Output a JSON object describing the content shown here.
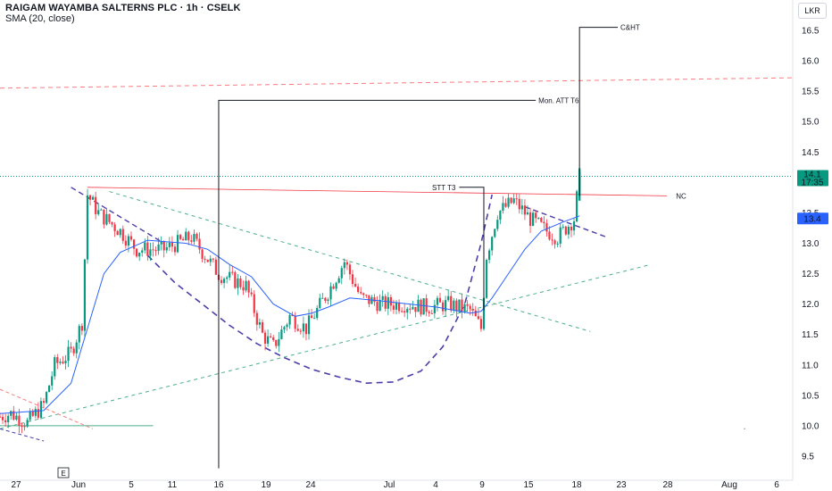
{
  "header": {
    "title": "RAIGAM WAYAMBA SALTERNS PLC · 1h · CSELK",
    "indicator": "SMA (20, close)"
  },
  "currency": "LKR",
  "colors": {
    "up": "#089981",
    "down": "#f23645",
    "sma": "#2962ff",
    "curve": "#4c3ea8",
    "trend_green": "#4caf8a",
    "trend_red": "#f77c80"
  },
  "price_badges": [
    {
      "label": "14.1",
      "sublabel": "17:35",
      "value": 14.1,
      "color": "#089981"
    },
    {
      "label": "13.4",
      "value": 13.4,
      "color": "#2962ff"
    }
  ],
  "chart_data": {
    "type": "candlestick",
    "y_axis": {
      "min": 9.3,
      "max": 16.7,
      "ticks": [
        9.5,
        10.0,
        10.5,
        11.0,
        11.5,
        12.0,
        12.5,
        13.0,
        13.5,
        14.0,
        14.5,
        15.0,
        15.5,
        16.0,
        16.5
      ]
    },
    "x_ticks": [
      "27",
      "Jun",
      "5",
      "11",
      "16",
      "19",
      "24",
      "Jul",
      "4",
      "9",
      "15",
      "18",
      "23",
      "28",
      "Aug",
      "6"
    ],
    "x_range": [
      0,
      145
    ],
    "series_close_anchor": [
      [
        0,
        10.15
      ],
      [
        2,
        10.2
      ],
      [
        5,
        10.05
      ],
      [
        8,
        10.35
      ],
      [
        10,
        11.0
      ],
      [
        13,
        11.2
      ],
      [
        15,
        11.7
      ],
      [
        16,
        13.8
      ],
      [
        18,
        13.5
      ],
      [
        22,
        13.2
      ],
      [
        25,
        12.9
      ],
      [
        30,
        12.9
      ],
      [
        35,
        13.1
      ],
      [
        40,
        12.5
      ],
      [
        45,
        12.3
      ],
      [
        48,
        11.5
      ],
      [
        50,
        11.3
      ],
      [
        53,
        11.8
      ],
      [
        56,
        11.6
      ],
      [
        60,
        12.2
      ],
      [
        63,
        12.7
      ],
      [
        66,
        12.1
      ],
      [
        70,
        12.0
      ],
      [
        74,
        12.0
      ],
      [
        78,
        11.95
      ],
      [
        82,
        12.0
      ],
      [
        86,
        11.9
      ],
      [
        88,
        11.6
      ],
      [
        89,
        12.8
      ],
      [
        91,
        13.5
      ],
      [
        94,
        13.7
      ],
      [
        97,
        13.4
      ],
      [
        100,
        13.2
      ],
      [
        102,
        13.1
      ],
      [
        105,
        13.4
      ],
      [
        106,
        14.1
      ]
    ],
    "sma": [
      [
        0,
        10.2
      ],
      [
        8,
        10.25
      ],
      [
        13,
        10.7
      ],
      [
        16,
        11.6
      ],
      [
        19,
        12.5
      ],
      [
        22,
        12.85
      ],
      [
        27,
        13.05
      ],
      [
        34,
        13.0
      ],
      [
        38,
        12.9
      ],
      [
        42,
        12.65
      ],
      [
        46,
        12.45
      ],
      [
        50,
        12.0
      ],
      [
        54,
        11.8
      ],
      [
        57,
        11.85
      ],
      [
        60,
        11.95
      ],
      [
        64,
        12.1
      ],
      [
        70,
        12.05
      ],
      [
        80,
        11.95
      ],
      [
        86,
        11.85
      ],
      [
        88,
        11.88
      ],
      [
        90,
        12.1
      ],
      [
        93,
        12.5
      ],
      [
        96,
        12.9
      ],
      [
        99,
        13.2
      ],
      [
        103,
        13.35
      ],
      [
        106,
        13.45
      ]
    ],
    "annotations": [
      {
        "label": "C&HT",
        "x": 106,
        "y": 16.55
      },
      {
        "label": "Mon. ATT T6",
        "x": 40,
        "y": 15.35
      },
      {
        "label": "STT T3",
        "x": 89,
        "y": 13.92
      },
      {
        "label": "NC",
        "x": 123,
        "y": 13.78
      },
      {
        "label": "E",
        "x": 11,
        "y": 9.3
      }
    ]
  }
}
